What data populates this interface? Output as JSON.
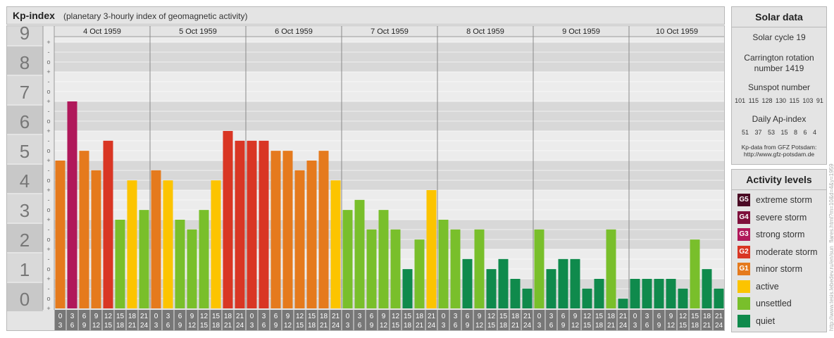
{
  "header": {
    "title": "Kp-index",
    "subtitle": "(planetary 3-hourly index of geomagnetic activity)"
  },
  "chart_data": {
    "type": "bar",
    "title": "Kp-index",
    "subtitle": "(planetary 3-hourly index of geomagnetic activity)",
    "y_labels": [
      "0",
      "1",
      "2",
      "3",
      "4",
      "5",
      "6",
      "7",
      "8",
      "9"
    ],
    "ylim": [
      0,
      9
    ],
    "minor_tick_glyphs": [
      "+",
      "o",
      "-"
    ],
    "days": [
      "4 Oct 1959",
      "5 Oct 1959",
      "6 Oct 1959",
      "7 Oct 1959",
      "8 Oct 1959",
      "9 Oct 1959",
      "10 Oct 1959"
    ],
    "interval_starts": [
      "0",
      "3",
      "6",
      "9",
      "12",
      "15",
      "18",
      "21"
    ],
    "interval_ends": [
      "3",
      "6",
      "9",
      "12",
      "15",
      "18",
      "21",
      "24"
    ],
    "values": [
      [
        5.0,
        7.0,
        5.33,
        4.67,
        5.67,
        3.0,
        4.33,
        3.33
      ],
      [
        4.67,
        4.33,
        3.0,
        2.67,
        3.33,
        4.33,
        6.0,
        5.67
      ],
      [
        5.67,
        5.67,
        5.33,
        5.33,
        4.67,
        5.0,
        5.33,
        4.33
      ],
      [
        3.33,
        3.67,
        2.67,
        3.33,
        2.67,
        1.33,
        2.33,
        4.0
      ],
      [
        3.0,
        2.67,
        1.67,
        2.67,
        1.33,
        1.67,
        1.0,
        0.67
      ],
      [
        2.67,
        1.33,
        1.67,
        1.67,
        0.67,
        1.0,
        2.67,
        0.33
      ],
      [
        1.0,
        1.0,
        1.0,
        1.0,
        0.67,
        2.33,
        1.33,
        0.67
      ]
    ],
    "level_colors": {
      "quiet": "#0f8a4c",
      "unsettled": "#79bf2b",
      "active": "#fcc400",
      "minor storm": "#e57a1d",
      "moderate storm": "#d93624",
      "strong storm": "#b0185a",
      "severe storm": "#7e0f3b",
      "extreme storm": "#4a0a24"
    },
    "grid": true
  },
  "solar": {
    "title": "Solar data",
    "cycle": "Solar cycle 19",
    "carrington_1": "Carrington rotation",
    "carrington_2": "number 1419",
    "sunspot_title": "Sunspot number",
    "sunspot_values": "101 115 128 130 115 103 91",
    "ap_title": "Daily Ap-index",
    "ap_values": "51 37 53 15 8 6 4",
    "source_1": "Kp-data from GFZ Potsdam:",
    "source_2": "http://www.gfz-potsdam.de"
  },
  "levels": {
    "title": "Activity levels",
    "items": [
      {
        "badge": "G5",
        "label": "extreme storm",
        "color": "#4a0a24"
      },
      {
        "badge": "G4",
        "label": "severe storm",
        "color": "#7e0f3b"
      },
      {
        "badge": "G3",
        "label": "strong storm",
        "color": "#b0185a"
      },
      {
        "badge": "G2",
        "label": "moderate storm",
        "color": "#d93624"
      },
      {
        "badge": "G1",
        "label": "minor storm",
        "color": "#e57a1d"
      },
      {
        "badge": "",
        "label": "active",
        "color": "#fcc400"
      },
      {
        "badge": "",
        "label": "unsettled",
        "color": "#79bf2b"
      },
      {
        "badge": "",
        "label": "quiet",
        "color": "#0f8a4c"
      }
    ]
  },
  "watermark": "http://www.tesis.lebedev.ru/en/sun_flares.html?m=10&d=4&y=1959"
}
